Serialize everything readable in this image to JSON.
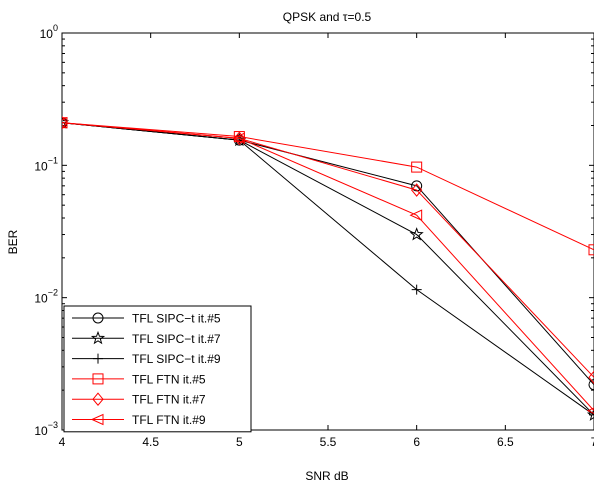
{
  "chart_data": {
    "type": "line",
    "title": "QPSK and τ=0.5",
    "xlabel": "SNR dB",
    "ylabel": "BER",
    "xlim": [
      4,
      7
    ],
    "ylim": [
      0.001,
      1
    ],
    "yscale": "log",
    "grid": false,
    "legend_position": "bottom-left",
    "x_ticks": [
      4,
      4.5,
      5,
      5.5,
      6,
      6.5,
      7
    ],
    "x_tick_labels": [
      "4",
      "4.5",
      "5",
      "5.5",
      "6",
      "6.5",
      "7"
    ],
    "y_ticks": [
      0.001,
      0.01,
      0.1,
      1
    ],
    "y_tick_labels": [
      {
        "base": "10",
        "exp": "−3"
      },
      {
        "base": "10",
        "exp": "−2"
      },
      {
        "base": "10",
        "exp": "−1"
      },
      {
        "base": "10",
        "exp": "0"
      }
    ],
    "x": [
      4,
      5,
      6,
      7
    ],
    "series": [
      {
        "name": "TFL SIPC−t it.#5",
        "color": "#000000",
        "marker": "circle",
        "values": [
          0.21,
          0.155,
          0.07,
          0.0022
        ]
      },
      {
        "name": "TFL SIPC−t it.#7",
        "color": "#000000",
        "marker": "star",
        "values": [
          0.21,
          0.155,
          0.03,
          0.0013
        ]
      },
      {
        "name": "TFL SIPC−t it.#9",
        "color": "#000000",
        "marker": "plus",
        "values": [
          0.21,
          0.155,
          0.0115,
          0.0013
        ]
      },
      {
        "name": "TFL FTN it.#5",
        "color": "#ff0000",
        "marker": "square",
        "values": [
          0.21,
          0.165,
          0.097,
          0.023
        ]
      },
      {
        "name": "TFL FTN it.#7",
        "color": "#ff0000",
        "marker": "diamond",
        "values": [
          0.21,
          0.16,
          0.065,
          0.0025
        ]
      },
      {
        "name": "TFL FTN it.#9",
        "color": "#ff0000",
        "marker": "triangle-left",
        "values": [
          0.21,
          0.16,
          0.042,
          0.0014
        ]
      }
    ]
  }
}
